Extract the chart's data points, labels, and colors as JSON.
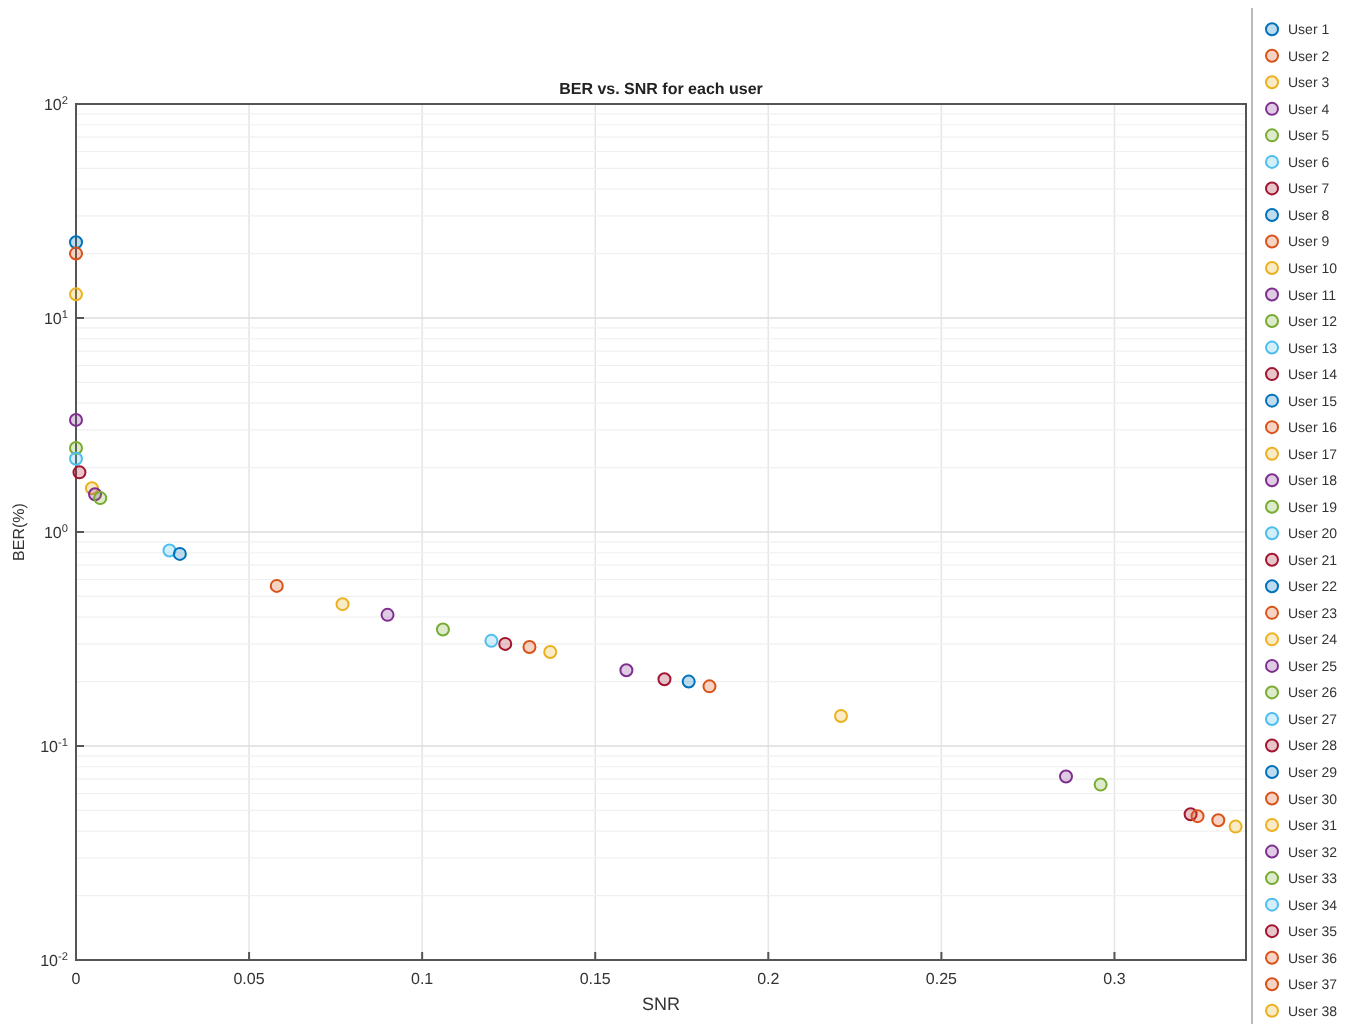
{
  "chart_data": {
    "type": "scatter",
    "title": "BER vs. SNR for each user",
    "xlabel": "SNR",
    "ylabel": "BER(%)",
    "log": "y",
    "grid": true,
    "legend": "right",
    "marker": "circle",
    "xlim": [
      0,
      0.338
    ],
    "xticks": [
      0,
      0.05,
      0.1,
      0.15,
      0.2,
      0.25,
      0.3
    ],
    "ylim": [
      0.01,
      100
    ],
    "yticks": [
      {
        "value": 0.01,
        "label": "10$^{-2}$"
      },
      {
        "value": 0.1,
        "label": "10$^{-1}$"
      },
      {
        "value": 1,
        "label": "10$^{0}$"
      },
      {
        "value": 10,
        "label": "10$^{1}$"
      },
      {
        "value": 100,
        "label": "10$^{2}$"
      }
    ],
    "series": [
      {
        "name": "User 1",
        "color": "#0072bd",
        "x": [
          0
        ],
        "values": [
          22.6
        ]
      },
      {
        "name": "User 2",
        "color": "#d95319",
        "x": [
          0
        ],
        "values": [
          20
        ]
      },
      {
        "name": "User 3",
        "color": "#edb120",
        "x": [
          0
        ],
        "values": [
          12.9
        ]
      },
      {
        "name": "User 4",
        "color": "#7e2f8e",
        "x": [
          0
        ],
        "values": [
          3.34
        ]
      },
      {
        "name": "User 5",
        "color": "#77ac30",
        "x": [
          0
        ],
        "values": [
          2.47
        ]
      },
      {
        "name": "User 6",
        "color": "#4dbeee",
        "x": [
          0
        ],
        "values": [
          2.2
        ]
      },
      {
        "name": "User 7",
        "color": "#a2142f",
        "x": [
          0.001
        ],
        "values": [
          1.9
        ]
      },
      {
        "name": "User 8",
        "color": "#0072bd",
        "x": [
          null
        ],
        "values": [
          null
        ]
      },
      {
        "name": "User 9",
        "color": "#d95319",
        "x": [
          null
        ],
        "values": [
          null
        ]
      },
      {
        "name": "User 10",
        "color": "#edb120",
        "x": [
          0.0046
        ],
        "values": [
          1.6
        ]
      },
      {
        "name": "User 11",
        "color": "#7e2f8e",
        "x": [
          0.0055
        ],
        "values": [
          1.5
        ]
      },
      {
        "name": "User 12",
        "color": "#77ac30",
        "x": [
          0.007
        ],
        "values": [
          1.44
        ]
      },
      {
        "name": "User 13",
        "color": "#4dbeee",
        "x": [
          0.027
        ],
        "values": [
          0.82
        ]
      },
      {
        "name": "User 14",
        "color": "#a2142f",
        "x": [
          null
        ],
        "values": [
          null
        ]
      },
      {
        "name": "User 15",
        "color": "#0072bd",
        "x": [
          0.03
        ],
        "values": [
          0.79
        ]
      },
      {
        "name": "User 16",
        "color": "#d95319",
        "x": [
          0.058
        ],
        "values": [
          0.56
        ]
      },
      {
        "name": "User 17",
        "color": "#edb120",
        "x": [
          0.077
        ],
        "values": [
          0.46
        ]
      },
      {
        "name": "User 18",
        "color": "#7e2f8e",
        "x": [
          0.09
        ],
        "values": [
          0.41
        ]
      },
      {
        "name": "User 19",
        "color": "#77ac30",
        "x": [
          0.106
        ],
        "values": [
          0.35
        ]
      },
      {
        "name": "User 20",
        "color": "#4dbeee",
        "x": [
          0.12
        ],
        "values": [
          0.31
        ]
      },
      {
        "name": "User 21",
        "color": "#a2142f",
        "x": [
          0.124
        ],
        "values": [
          0.3
        ]
      },
      {
        "name": "User 22",
        "color": "#0072bd",
        "x": [
          null
        ],
        "values": [
          null
        ]
      },
      {
        "name": "User 23",
        "color": "#d95319",
        "x": [
          0.131
        ],
        "values": [
          0.29
        ]
      },
      {
        "name": "User 24",
        "color": "#edb120",
        "x": [
          0.137
        ],
        "values": [
          0.275
        ]
      },
      {
        "name": "User 25",
        "color": "#7e2f8e",
        "x": [
          0.159
        ],
        "values": [
          0.226
        ]
      },
      {
        "name": "User 26",
        "color": "#77ac30",
        "x": [
          null
        ],
        "values": [
          null
        ]
      },
      {
        "name": "User 27",
        "color": "#4dbeee",
        "x": [
          null
        ],
        "values": [
          null
        ]
      },
      {
        "name": "User 28",
        "color": "#a2142f",
        "x": [
          0.17
        ],
        "values": [
          0.205
        ]
      },
      {
        "name": "User 29",
        "color": "#0072bd",
        "x": [
          0.177
        ],
        "values": [
          0.2
        ]
      },
      {
        "name": "User 30",
        "color": "#d95319",
        "x": [
          0.183
        ],
        "values": [
          0.19
        ]
      },
      {
        "name": "User 31",
        "color": "#edb120",
        "x": [
          0.221
        ],
        "values": [
          0.138
        ]
      },
      {
        "name": "User 32",
        "color": "#7e2f8e",
        "x": [
          0.286
        ],
        "values": [
          0.072
        ]
      },
      {
        "name": "User 33",
        "color": "#77ac30",
        "x": [
          0.296
        ],
        "values": [
          0.066
        ]
      },
      {
        "name": "User 34",
        "color": "#4dbeee",
        "x": [
          null
        ],
        "values": [
          null
        ]
      },
      {
        "name": "User 35",
        "color": "#a2142f",
        "x": [
          0.322
        ],
        "values": [
          0.048
        ]
      },
      {
        "name": "User 36",
        "color": "#d95319",
        "x": [
          0.324
        ],
        "values": [
          0.047
        ]
      },
      {
        "name": "User 37",
        "color": "#d95319",
        "x": [
          0.33
        ],
        "values": [
          0.045
        ]
      },
      {
        "name": "User 38",
        "color": "#edb120",
        "x": [
          0.335
        ],
        "values": [
          0.042
        ]
      }
    ]
  }
}
